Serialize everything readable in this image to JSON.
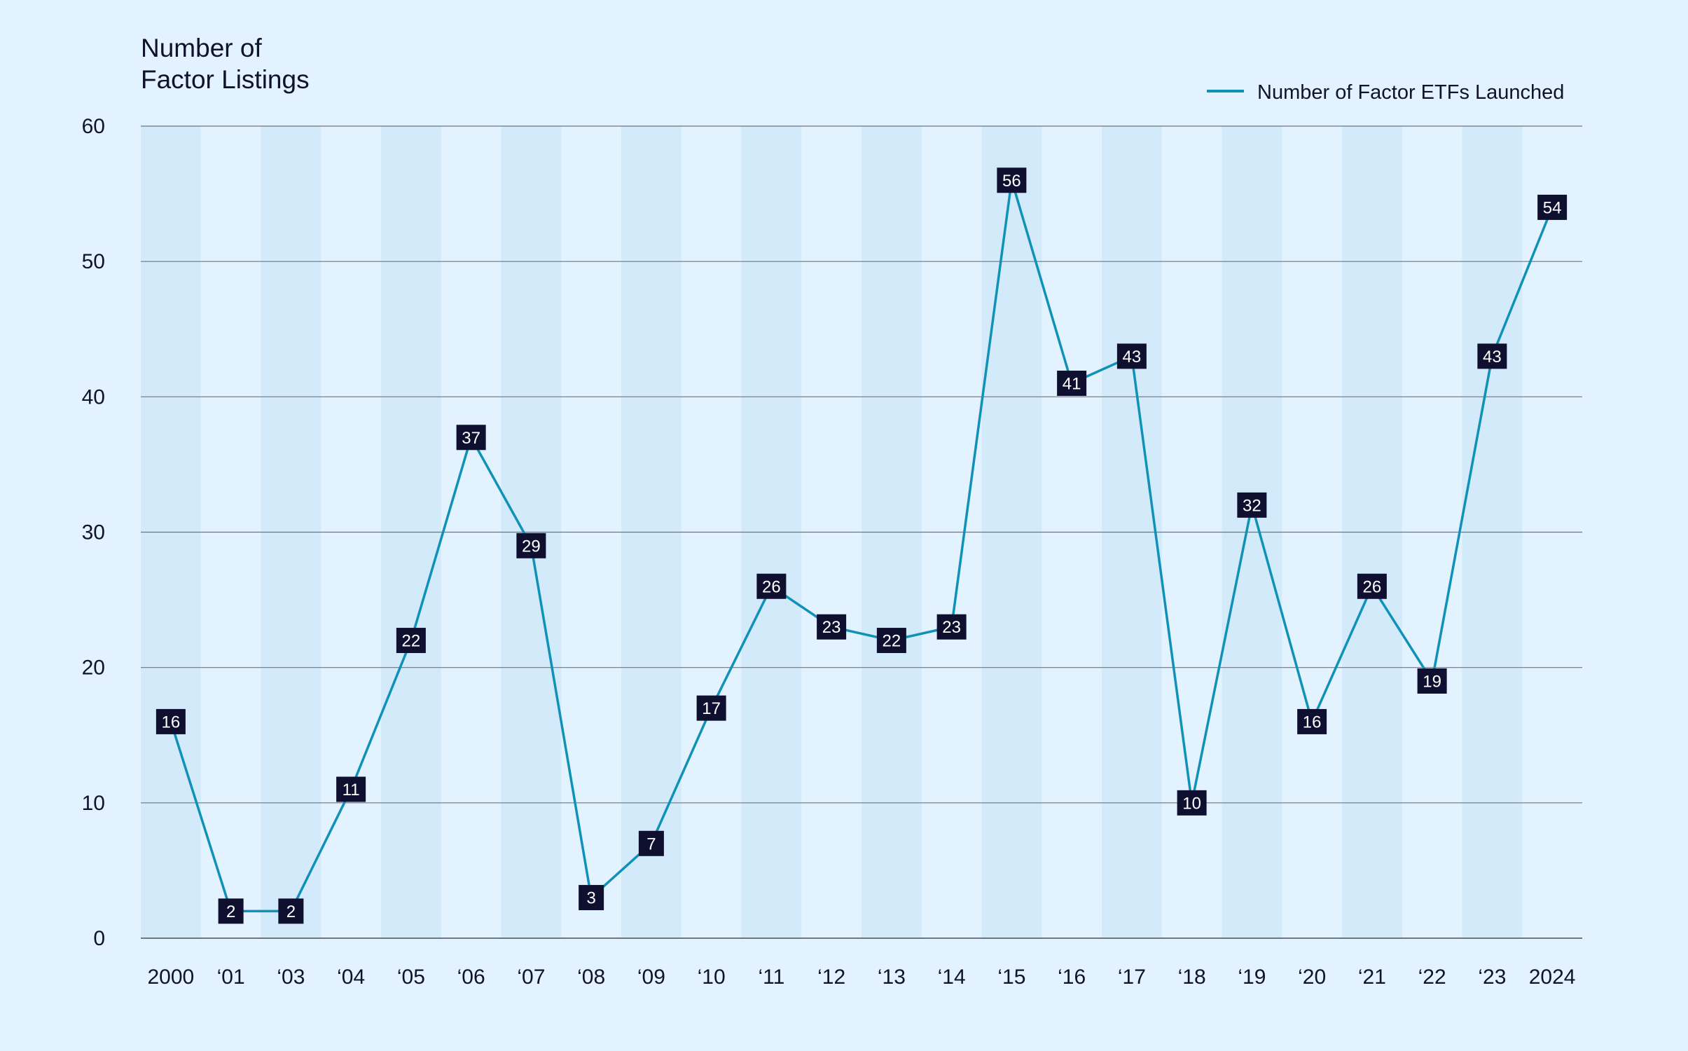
{
  "chart_data": {
    "type": "line",
    "title": "",
    "ylabel_lines": [
      "Number of",
      "Factor Listings"
    ],
    "xlabel": "",
    "ylim": [
      0,
      60
    ],
    "yticks": [
      0,
      10,
      20,
      30,
      40,
      50,
      60
    ],
    "grid": "horizontal",
    "legend_position": "top-right",
    "categories": [
      "2000",
      "‘01",
      "‘03",
      "‘04",
      "‘05",
      "‘06",
      "‘07",
      "‘08",
      "‘09",
      "‘10",
      "‘11",
      "‘12",
      "‘13",
      "‘14",
      "‘15",
      "‘16",
      "‘17",
      "‘18",
      "‘19",
      "‘20",
      "‘21",
      "‘22",
      "‘23",
      "2024"
    ],
    "series": [
      {
        "name": "Number of Factor ETFs Launched",
        "values": [
          16,
          2,
          2,
          11,
          22,
          37,
          29,
          3,
          7,
          17,
          26,
          23,
          22,
          23,
          56,
          41,
          43,
          10,
          32,
          16,
          26,
          19,
          43,
          54
        ]
      }
    ],
    "colors": {
      "background": "#e2f2fe",
      "band": "#d2eaf9",
      "line": "#1092b8",
      "label_box": "#0f1030",
      "label_text": "#ffffff",
      "gridline": "#6e7680",
      "text": "#10122b"
    }
  }
}
